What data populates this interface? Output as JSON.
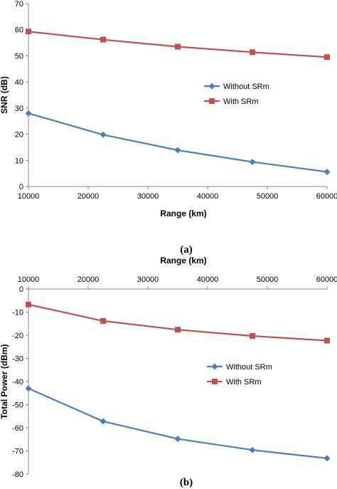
{
  "chart_data": [
    {
      "panel": "(a)",
      "type": "line",
      "xlabel": "Range (km)",
      "ylabel": "SNR (dB)",
      "xlim": [
        10000,
        60000
      ],
      "ylim": [
        0,
        70
      ],
      "x_ticks": [
        "10000",
        "20000",
        "30000",
        "40000",
        "50000",
        "60000"
      ],
      "y_ticks": [
        "0",
        "10",
        "20",
        "30",
        "40",
        "50",
        "60",
        "70"
      ],
      "x": [
        10000,
        22500,
        35000,
        47500,
        60000
      ],
      "series": [
        {
          "name": "Without SRm",
          "color": "#4a7ebf",
          "marker": "diamond",
          "values": [
            28,
            19.8,
            13.9,
            9.4,
            5.6
          ]
        },
        {
          "name": "With SRm",
          "color": "#c0504d",
          "marker": "square",
          "values": [
            59.3,
            56.2,
            53.5,
            51.4,
            49.5
          ]
        }
      ],
      "legend": "center-right",
      "grid": false,
      "x_axis_position": "bottom"
    },
    {
      "panel": "(b)",
      "type": "line",
      "xlabel": "Range (km)",
      "ylabel": "Total Power (dBm)",
      "xlim": [
        10000,
        60000
      ],
      "ylim": [
        -80,
        0
      ],
      "x_ticks": [
        "10000",
        "20000",
        "30000",
        "40000",
        "50000",
        "60000"
      ],
      "y_ticks": [
        "0",
        "-10",
        "-20",
        "-30",
        "-40",
        "-50",
        "-60",
        "-70",
        "-80"
      ],
      "x": [
        10000,
        22500,
        35000,
        47500,
        60000
      ],
      "series": [
        {
          "name": "Without SRm",
          "color": "#4a7ebf",
          "marker": "diamond",
          "values": [
            -43,
            -57.2,
            -64.8,
            -69.6,
            -73.2
          ]
        },
        {
          "name": "With SRm",
          "color": "#c0504d",
          "marker": "square",
          "values": [
            -6.7,
            -13.8,
            -17.6,
            -20.3,
            -22.3
          ]
        }
      ],
      "legend": "center-right",
      "grid": false,
      "x_axis_position": "top"
    }
  ]
}
